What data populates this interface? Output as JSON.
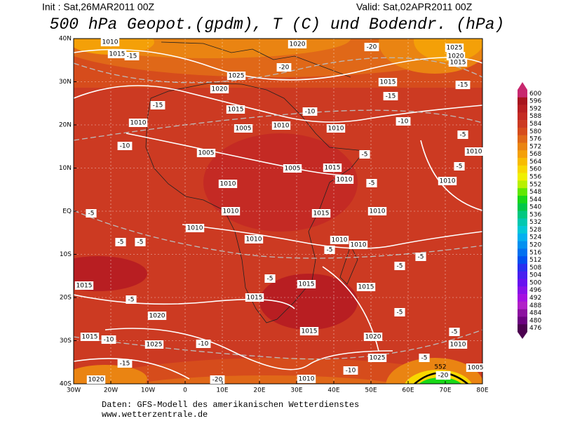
{
  "header": {
    "init": "Init : Sat,26MAR2011 00Z",
    "valid": "Valid: Sat,02APR2011 00Z",
    "title": "500 hPa Geopot.(gpdm), T (C) und Bodendr. (hPa)"
  },
  "map": {
    "lat_labels": [
      "40N",
      "30N",
      "20N",
      "10N",
      "EQ",
      "10S",
      "20S",
      "30S",
      "40S"
    ],
    "lon_labels": [
      "30W",
      "20W",
      "10W",
      "0",
      "10E",
      "20E",
      "30E",
      "40E",
      "50E",
      "60E",
      "70E",
      "80E"
    ],
    "pressure_labels": [
      "1010",
      "1015",
      "1025",
      "1020",
      "1015",
      "1010",
      "1005",
      "1010",
      "1010",
      "1005",
      "1005",
      "1015",
      "1010",
      "1010",
      "1010",
      "1010",
      "1010",
      "1015",
      "1010",
      "1010",
      "1010",
      "1010",
      "1010",
      "1015",
      "1015",
      "1015",
      "1015",
      "1020",
      "1015",
      "1020",
      "1025",
      "1015",
      "1010",
      "1025",
      "1020",
      "1010",
      "1005",
      "1020",
      "1025",
      "1020",
      "1015",
      "1015"
    ],
    "temperature_labels": [
      "-20",
      "-20",
      "-15",
      "-15",
      "-15",
      "-15",
      "-10",
      "-10",
      "-10",
      "-5",
      "-5",
      "-5",
      "-5",
      "-5",
      "-5",
      "-5",
      "-5",
      "-5",
      "-10",
      "-5",
      "-10",
      "-15",
      "-20",
      "-10",
      "-5",
      "-20",
      "-5",
      "-5",
      "-5",
      "-5"
    ],
    "height_labels": [
      "552"
    ]
  },
  "colorbar": {
    "levels": [
      600,
      596,
      592,
      588,
      584,
      580,
      576,
      572,
      568,
      564,
      560,
      556,
      552,
      548,
      544,
      540,
      536,
      532,
      528,
      524,
      520,
      516,
      512,
      508,
      504,
      500,
      496,
      492,
      488,
      484,
      480,
      476
    ],
    "colors": [
      "#c8286e",
      "#a8141e",
      "#b81e22",
      "#c42a24",
      "#cc3a22",
      "#d64c1c",
      "#e06818",
      "#ea8412",
      "#f4a008",
      "#f8bc00",
      "#f8d800",
      "#f0f000",
      "#b8f000",
      "#60e800",
      "#18d818",
      "#00c848",
      "#00c880",
      "#00c8b0",
      "#00c8d8",
      "#00b0f0",
      "#0090f0",
      "#0070f0",
      "#0050f0",
      "#2830f0",
      "#4820f0",
      "#6810f0",
      "#8810e8",
      "#a410e0",
      "#b020c8",
      "#8c10a0",
      "#6c0080",
      "#4c0050"
    ]
  },
  "footer": {
    "source": "Daten: GFS-Modell des amerikanischen Wetterdienstes",
    "site": "www.wetterzentrale.de"
  }
}
